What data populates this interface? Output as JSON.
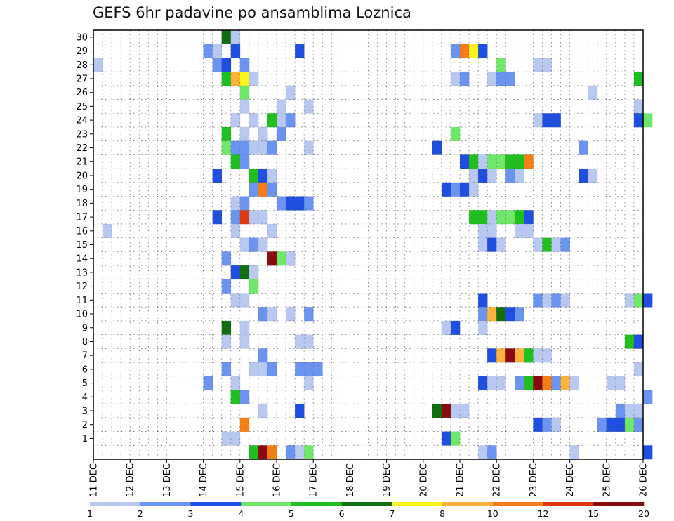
{
  "chart_data": {
    "type": "heatmap",
    "title": "GEFS 6hr padavine po ansamblima Loznica",
    "xlabel": "",
    "ylabel": "",
    "members": [
      30,
      29,
      28,
      27,
      26,
      25,
      24,
      23,
      22,
      21,
      20,
      19,
      18,
      17,
      16,
      15,
      14,
      13,
      12,
      11,
      10,
      9,
      8,
      7,
      6,
      5,
      4,
      3,
      2,
      1,
      0
    ],
    "y_tick_labels": [
      "30",
      "29",
      "28",
      "27",
      "26",
      "25",
      "24",
      "23",
      "22",
      "21",
      "20",
      "19",
      "18",
      "17",
      "16",
      "15",
      "14",
      "13",
      "12",
      "11",
      "10",
      "9",
      "8",
      "7",
      "6",
      "5",
      "4",
      "3",
      "2",
      "1"
    ],
    "x_tick_labels": [
      "11 DEC",
      "12 DEC",
      "13 DEC",
      "14 DEC",
      "15 DEC",
      "16 DEC",
      "17 DEC",
      "18 DEC",
      "19 DEC",
      "20 DEC",
      "21 DEC",
      "22 DEC",
      "23 DEC",
      "24 DEC",
      "25 DEC",
      "26 DEC"
    ],
    "x_steps_per_day": 4,
    "x_range_steps": [
      0,
      60
    ],
    "grid": true,
    "colorbar": {
      "labels": [
        "1",
        "2",
        "3",
        "4",
        "5",
        "6",
        "7",
        "8",
        "10",
        "12",
        "15",
        "20"
      ],
      "colors": [
        "#b8c8f0",
        "#6b93f0",
        "#1f4fe0",
        "#6fe86a",
        "#1fbf1f",
        "#106e10",
        "#fbf51a",
        "#fdb23c",
        "#f77d16",
        "#dd3a10",
        "#8a0810"
      ]
    },
    "cells": [
      {
        "m": 30,
        "x": 14.5,
        "v": 6
      },
      {
        "m": 30,
        "x": 14.75,
        "v": 1
      },
      {
        "m": 29,
        "x": 14,
        "v": 2
      },
      {
        "m": 29,
        "x": 14.25,
        "v": 1
      },
      {
        "m": 29,
        "x": 14.75,
        "v": 3
      },
      {
        "m": 29,
        "x": 16.5,
        "v": 3
      },
      {
        "m": 29,
        "x": 20.75,
        "v": 2
      },
      {
        "m": 29,
        "x": 21,
        "v": 10
      },
      {
        "m": 29,
        "x": 21.25,
        "v": 7
      },
      {
        "m": 29,
        "x": 21.5,
        "v": 3
      },
      {
        "m": 28,
        "x": 11,
        "v": 1
      },
      {
        "m": 28,
        "x": 14.25,
        "v": 2
      },
      {
        "m": 28,
        "x": 14.5,
        "v": 3
      },
      {
        "m": 28,
        "x": 15,
        "v": 2
      },
      {
        "m": 28,
        "x": 22,
        "v": 4
      },
      {
        "m": 28,
        "x": 23,
        "v": 1
      },
      {
        "m": 28,
        "x": 23.25,
        "v": 1
      },
      {
        "m": 27,
        "x": 14.5,
        "v": 5
      },
      {
        "m": 27,
        "x": 14.75,
        "v": 8
      },
      {
        "m": 27,
        "x": 15,
        "v": 7
      },
      {
        "m": 27,
        "x": 15.25,
        "v": 1
      },
      {
        "m": 27,
        "x": 20.75,
        "v": 1
      },
      {
        "m": 27,
        "x": 21,
        "v": 2
      },
      {
        "m": 27,
        "x": 21.75,
        "v": 1
      },
      {
        "m": 27,
        "x": 22,
        "v": 2
      },
      {
        "m": 27,
        "x": 22.25,
        "v": 2
      },
      {
        "m": 27,
        "x": 25.75,
        "v": 5
      },
      {
        "m": 26,
        "x": 15,
        "v": 4
      },
      {
        "m": 26,
        "x": 16.25,
        "v": 1
      },
      {
        "m": 26,
        "x": 24.5,
        "v": 1
      },
      {
        "m": 25,
        "x": 15,
        "v": 1
      },
      {
        "m": 25,
        "x": 16,
        "v": 1
      },
      {
        "m": 25,
        "x": 16.75,
        "v": 1
      },
      {
        "m": 25,
        "x": 25.75,
        "v": 1
      },
      {
        "m": 24,
        "x": 14.75,
        "v": 1
      },
      {
        "m": 24,
        "x": 15.25,
        "v": 1
      },
      {
        "m": 24,
        "x": 15.75,
        "v": 5
      },
      {
        "m": 24,
        "x": 16,
        "v": 1
      },
      {
        "m": 24,
        "x": 16.25,
        "v": 2
      },
      {
        "m": 24,
        "x": 23,
        "v": 1
      },
      {
        "m": 24,
        "x": 23.25,
        "v": 3
      },
      {
        "m": 24,
        "x": 23.5,
        "v": 3
      },
      {
        "m": 24,
        "x": 25.75,
        "v": 3
      },
      {
        "m": 24,
        "x": 26,
        "v": 4
      },
      {
        "m": 23,
        "x": 14.5,
        "v": 5
      },
      {
        "m": 23,
        "x": 15,
        "v": 1
      },
      {
        "m": 23,
        "x": 15.5,
        "v": 1
      },
      {
        "m": 23,
        "x": 16,
        "v": 2
      },
      {
        "m": 23,
        "x": 20.75,
        "v": 4
      },
      {
        "m": 22,
        "x": 14.5,
        "v": 4
      },
      {
        "m": 22,
        "x": 14.75,
        "v": 2
      },
      {
        "m": 22,
        "x": 15,
        "v": 2
      },
      {
        "m": 22,
        "x": 15.25,
        "v": 1
      },
      {
        "m": 22,
        "x": 15.5,
        "v": 1
      },
      {
        "m": 22,
        "x": 15.75,
        "v": 2
      },
      {
        "m": 22,
        "x": 16.75,
        "v": 1
      },
      {
        "m": 22,
        "x": 20.25,
        "v": 3
      },
      {
        "m": 22,
        "x": 24.25,
        "v": 2
      },
      {
        "m": 21,
        "x": 14.75,
        "v": 5
      },
      {
        "m": 21,
        "x": 15,
        "v": 2
      },
      {
        "m": 21,
        "x": 21,
        "v": 3
      },
      {
        "m": 21,
        "x": 21.25,
        "v": 5
      },
      {
        "m": 21,
        "x": 21.5,
        "v": 1
      },
      {
        "m": 21,
        "x": 21.75,
        "v": 4
      },
      {
        "m": 21,
        "x": 22,
        "v": 4
      },
      {
        "m": 21,
        "x": 22.25,
        "v": 5
      },
      {
        "m": 21,
        "x": 22.5,
        "v": 5
      },
      {
        "m": 21,
        "x": 22.75,
        "v": 10
      },
      {
        "m": 20,
        "x": 14.25,
        "v": 3
      },
      {
        "m": 20,
        "x": 15.25,
        "v": 5
      },
      {
        "m": 20,
        "x": 15.5,
        "v": 3
      },
      {
        "m": 20,
        "x": 15.75,
        "v": 1
      },
      {
        "m": 20,
        "x": 21.25,
        "v": 1
      },
      {
        "m": 20,
        "x": 21.5,
        "v": 3
      },
      {
        "m": 20,
        "x": 21.75,
        "v": 1
      },
      {
        "m": 20,
        "x": 22.25,
        "v": 2
      },
      {
        "m": 20,
        "x": 22.5,
        "v": 1
      },
      {
        "m": 20,
        "x": 24.25,
        "v": 3
      },
      {
        "m": 20,
        "x": 24.5,
        "v": 1
      },
      {
        "m": 19,
        "x": 15.25,
        "v": 2
      },
      {
        "m": 19,
        "x": 15.5,
        "v": 10
      },
      {
        "m": 19,
        "x": 15.75,
        "v": 2
      },
      {
        "m": 19,
        "x": 20.5,
        "v": 3
      },
      {
        "m": 19,
        "x": 20.75,
        "v": 2
      },
      {
        "m": 19,
        "x": 21,
        "v": 3
      },
      {
        "m": 19,
        "x": 21.25,
        "v": 1
      },
      {
        "m": 18,
        "x": 14.75,
        "v": 1
      },
      {
        "m": 18,
        "x": 15,
        "v": 2
      },
      {
        "m": 18,
        "x": 16,
        "v": 2
      },
      {
        "m": 18,
        "x": 16.25,
        "v": 3
      },
      {
        "m": 18,
        "x": 16.5,
        "v": 3
      },
      {
        "m": 18,
        "x": 16.75,
        "v": 2
      },
      {
        "m": 17,
        "x": 14.25,
        "v": 3
      },
      {
        "m": 17,
        "x": 14.75,
        "v": 2
      },
      {
        "m": 17,
        "x": 15,
        "v": 12
      },
      {
        "m": 17,
        "x": 15.25,
        "v": 1
      },
      {
        "m": 17,
        "x": 15.5,
        "v": 1
      },
      {
        "m": 17,
        "x": 21.25,
        "v": 5
      },
      {
        "m": 17,
        "x": 21.5,
        "v": 5
      },
      {
        "m": 17,
        "x": 21.75,
        "v": 1
      },
      {
        "m": 17,
        "x": 22,
        "v": 4
      },
      {
        "m": 17,
        "x": 22.25,
        "v": 4
      },
      {
        "m": 17,
        "x": 22.5,
        "v": 5
      },
      {
        "m": 17,
        "x": 22.75,
        "v": 3
      },
      {
        "m": 16,
        "x": 11.25,
        "v": 1
      },
      {
        "m": 16,
        "x": 14.75,
        "v": 1
      },
      {
        "m": 16,
        "x": 15.75,
        "v": 1
      },
      {
        "m": 16,
        "x": 21.5,
        "v": 1
      },
      {
        "m": 16,
        "x": 21.75,
        "v": 1
      },
      {
        "m": 16,
        "x": 22.5,
        "v": 1
      },
      {
        "m": 16,
        "x": 22.75,
        "v": 1
      },
      {
        "m": 15,
        "x": 15,
        "v": 1
      },
      {
        "m": 15,
        "x": 15.25,
        "v": 2
      },
      {
        "m": 15,
        "x": 15.5,
        "v": 1
      },
      {
        "m": 15,
        "x": 21.5,
        "v": 1
      },
      {
        "m": 15,
        "x": 21.75,
        "v": 3
      },
      {
        "m": 15,
        "x": 22,
        "v": 1
      },
      {
        "m": 15,
        "x": 23,
        "v": 1
      },
      {
        "m": 15,
        "x": 23.25,
        "v": 5
      },
      {
        "m": 15,
        "x": 23.5,
        "v": 1
      },
      {
        "m": 15,
        "x": 23.75,
        "v": 2
      },
      {
        "m": 14,
        "x": 14.5,
        "v": 2
      },
      {
        "m": 14,
        "x": 15.75,
        "v": 20
      },
      {
        "m": 14,
        "x": 16,
        "v": 4
      },
      {
        "m": 14,
        "x": 16.25,
        "v": 1
      },
      {
        "m": 13,
        "x": 14.75,
        "v": 3
      },
      {
        "m": 13,
        "x": 15,
        "v": 6
      },
      {
        "m": 13,
        "x": 15.25,
        "v": 1
      },
      {
        "m": 12,
        "x": 14.5,
        "v": 2
      },
      {
        "m": 12,
        "x": 15.25,
        "v": 4
      },
      {
        "m": 11,
        "x": 14.75,
        "v": 1
      },
      {
        "m": 11,
        "x": 15,
        "v": 1
      },
      {
        "m": 11,
        "x": 21.5,
        "v": 3
      },
      {
        "m": 11,
        "x": 23,
        "v": 2
      },
      {
        "m": 11,
        "x": 23.25,
        "v": 1
      },
      {
        "m": 11,
        "x": 23.5,
        "v": 2
      },
      {
        "m": 11,
        "x": 23.75,
        "v": 1
      },
      {
        "m": 11,
        "x": 25.5,
        "v": 1
      },
      {
        "m": 11,
        "x": 25.75,
        "v": 4
      },
      {
        "m": 11,
        "x": 26,
        "v": 3
      },
      {
        "m": 10,
        "x": 15.5,
        "v": 2
      },
      {
        "m": 10,
        "x": 15.75,
        "v": 1
      },
      {
        "m": 10,
        "x": 16.25,
        "v": 1
      },
      {
        "m": 10,
        "x": 16.75,
        "v": 2
      },
      {
        "m": 10,
        "x": 21.5,
        "v": 2
      },
      {
        "m": 10,
        "x": 21.75,
        "v": 8
      },
      {
        "m": 10,
        "x": 22,
        "v": 6
      },
      {
        "m": 10,
        "x": 22.25,
        "v": 3
      },
      {
        "m": 10,
        "x": 22.5,
        "v": 2
      },
      {
        "m": 9,
        "x": 14.5,
        "v": 6
      },
      {
        "m": 9,
        "x": 15,
        "v": 1
      },
      {
        "m": 9,
        "x": 20.5,
        "v": 1
      },
      {
        "m": 9,
        "x": 20.75,
        "v": 3
      },
      {
        "m": 9,
        "x": 21.5,
        "v": 1
      },
      {
        "m": 8,
        "x": 14.5,
        "v": 1
      },
      {
        "m": 8,
        "x": 15,
        "v": 1
      },
      {
        "m": 8,
        "x": 16.5,
        "v": 1
      },
      {
        "m": 8,
        "x": 16.75,
        "v": 1
      },
      {
        "m": 8,
        "x": 25.5,
        "v": 5
      },
      {
        "m": 8,
        "x": 25.75,
        "v": 3
      },
      {
        "m": 7,
        "x": 15.5,
        "v": 2
      },
      {
        "m": 7,
        "x": 21.75,
        "v": 3
      },
      {
        "m": 7,
        "x": 22,
        "v": 8
      },
      {
        "m": 7,
        "x": 22.25,
        "v": 15
      },
      {
        "m": 7,
        "x": 22.5,
        "v": 8
      },
      {
        "m": 7,
        "x": 22.75,
        "v": 5
      },
      {
        "m": 7,
        "x": 23,
        "v": 1
      },
      {
        "m": 7,
        "x": 23.25,
        "v": 1
      },
      {
        "m": 6,
        "x": 14.5,
        "v": 2
      },
      {
        "m": 6,
        "x": 15.25,
        "v": 1
      },
      {
        "m": 6,
        "x": 15.5,
        "v": 1
      },
      {
        "m": 6,
        "x": 15.75,
        "v": 2
      },
      {
        "m": 6,
        "x": 16.5,
        "v": 2
      },
      {
        "m": 6,
        "x": 16.75,
        "v": 2
      },
      {
        "m": 6,
        "x": 17,
        "v": 2
      },
      {
        "m": 6,
        "x": 25.75,
        "v": 1
      },
      {
        "m": 5,
        "x": 14,
        "v": 2
      },
      {
        "m": 5,
        "x": 14.75,
        "v": 1
      },
      {
        "m": 5,
        "x": 16.75,
        "v": 1
      },
      {
        "m": 5,
        "x": 21.5,
        "v": 3
      },
      {
        "m": 5,
        "x": 21.75,
        "v": 1
      },
      {
        "m": 5,
        "x": 22,
        "v": 1
      },
      {
        "m": 5,
        "x": 22.5,
        "v": 2
      },
      {
        "m": 5,
        "x": 22.75,
        "v": 5
      },
      {
        "m": 5,
        "x": 23,
        "v": 15
      },
      {
        "m": 5,
        "x": 23.25,
        "v": 10
      },
      {
        "m": 5,
        "x": 23.5,
        "v": 2
      },
      {
        "m": 5,
        "x": 23.75,
        "v": 8
      },
      {
        "m": 5,
        "x": 24,
        "v": 1
      },
      {
        "m": 5,
        "x": 25,
        "v": 1
      },
      {
        "m": 5,
        "x": 25.25,
        "v": 1
      },
      {
        "m": 4,
        "x": 14.75,
        "v": 5
      },
      {
        "m": 4,
        "x": 15,
        "v": 2
      },
      {
        "m": 4,
        "x": 26,
        "v": 2
      },
      {
        "m": 3,
        "x": 15.5,
        "v": 1
      },
      {
        "m": 3,
        "x": 16.5,
        "v": 3
      },
      {
        "m": 3,
        "x": 20.25,
        "v": 6
      },
      {
        "m": 3,
        "x": 20.5,
        "v": 15
      },
      {
        "m": 3,
        "x": 20.75,
        "v": 1
      },
      {
        "m": 3,
        "x": 21,
        "v": 1
      },
      {
        "m": 3,
        "x": 25.25,
        "v": 2
      },
      {
        "m": 3,
        "x": 25.5,
        "v": 1
      },
      {
        "m": 3,
        "x": 25.75,
        "v": 1
      },
      {
        "m": 2,
        "x": 15,
        "v": 10
      },
      {
        "m": 2,
        "x": 23,
        "v": 3
      },
      {
        "m": 2,
        "x": 23.25,
        "v": 2
      },
      {
        "m": 2,
        "x": 23.5,
        "v": 1
      },
      {
        "m": 2,
        "x": 24.75,
        "v": 2
      },
      {
        "m": 2,
        "x": 25,
        "v": 3
      },
      {
        "m": 2,
        "x": 25.25,
        "v": 3
      },
      {
        "m": 2,
        "x": 25.5,
        "v": 4
      },
      {
        "m": 2,
        "x": 25.75,
        "v": 2
      },
      {
        "m": 1,
        "x": 14.5,
        "v": 1
      },
      {
        "m": 1,
        "x": 14.75,
        "v": 1
      },
      {
        "m": 1,
        "x": 20.5,
        "v": 3
      },
      {
        "m": 1,
        "x": 20.75,
        "v": 4
      },
      {
        "m": 0,
        "x": 15.25,
        "v": 5
      },
      {
        "m": 0,
        "x": 15.5,
        "v": 15
      },
      {
        "m": 0,
        "x": 15.75,
        "v": 10
      },
      {
        "m": 0,
        "x": 16.25,
        "v": 2
      },
      {
        "m": 0,
        "x": 16.5,
        "v": 1
      },
      {
        "m": 0,
        "x": 16.75,
        "v": 4
      },
      {
        "m": 0,
        "x": 21.5,
        "v": 1
      },
      {
        "m": 0,
        "x": 21.75,
        "v": 2
      },
      {
        "m": 0,
        "x": 24,
        "v": 1
      },
      {
        "m": 0,
        "x": 26,
        "v": 3
      }
    ]
  }
}
